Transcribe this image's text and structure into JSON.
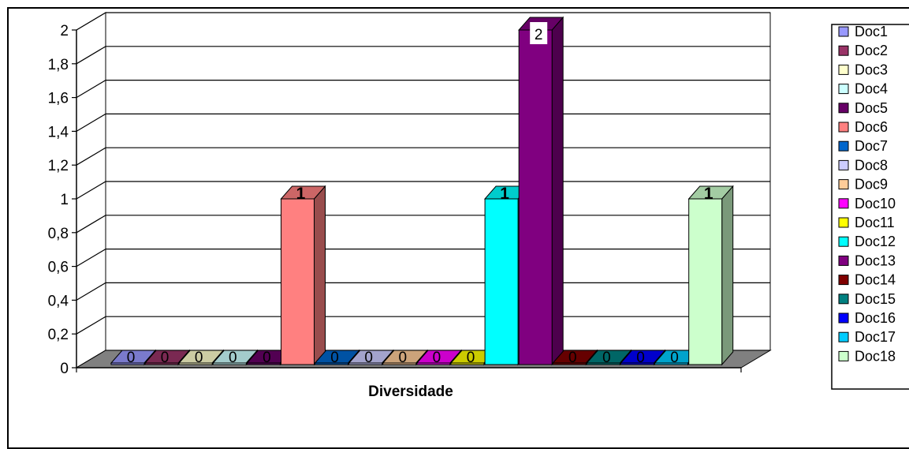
{
  "chart_data": {
    "type": "bar",
    "categories": [
      "Diversidade"
    ],
    "series": [
      {
        "name": "Doc1",
        "values": [
          0
        ],
        "color": "#9999FF"
      },
      {
        "name": "Doc2",
        "values": [
          0
        ],
        "color": "#993366"
      },
      {
        "name": "Doc3",
        "values": [
          0
        ],
        "color": "#FFFFCC"
      },
      {
        "name": "Doc4",
        "values": [
          0
        ],
        "color": "#CCFFFF"
      },
      {
        "name": "Doc5",
        "values": [
          0
        ],
        "color": "#660066"
      },
      {
        "name": "Doc6",
        "values": [
          1
        ],
        "color": "#FF8080"
      },
      {
        "name": "Doc7",
        "values": [
          0
        ],
        "color": "#0066CC"
      },
      {
        "name": "Doc8",
        "values": [
          0
        ],
        "color": "#CCCCFF"
      },
      {
        "name": "Doc9",
        "values": [
          0
        ],
        "color": "#FFCC99"
      },
      {
        "name": "Doc10",
        "values": [
          0
        ],
        "color": "#FF00FF"
      },
      {
        "name": "Doc11",
        "values": [
          0
        ],
        "color": "#FFFF00"
      },
      {
        "name": "Doc12",
        "values": [
          1
        ],
        "color": "#00FFFF"
      },
      {
        "name": "Doc13",
        "values": [
          2
        ],
        "color": "#800080"
      },
      {
        "name": "Doc14",
        "values": [
          0
        ],
        "color": "#800000"
      },
      {
        "name": "Doc15",
        "values": [
          0
        ],
        "color": "#008080"
      },
      {
        "name": "Doc16",
        "values": [
          0
        ],
        "color": "#0000FF"
      },
      {
        "name": "Doc17",
        "values": [
          0
        ],
        "color": "#00CCFF"
      },
      {
        "name": "Doc18",
        "values": [
          1
        ],
        "color": "#CCFFCC"
      }
    ],
    "y_ticks": [
      "0",
      "0,2",
      "0,4",
      "0,6",
      "0,8",
      "1",
      "1,2",
      "1,4",
      "1,6",
      "1,8",
      "2"
    ],
    "ylim": [
      0,
      2
    ],
    "grid": true,
    "legend": "right",
    "data_labels": true,
    "title": "",
    "xlabel": "",
    "ylabel": ""
  }
}
